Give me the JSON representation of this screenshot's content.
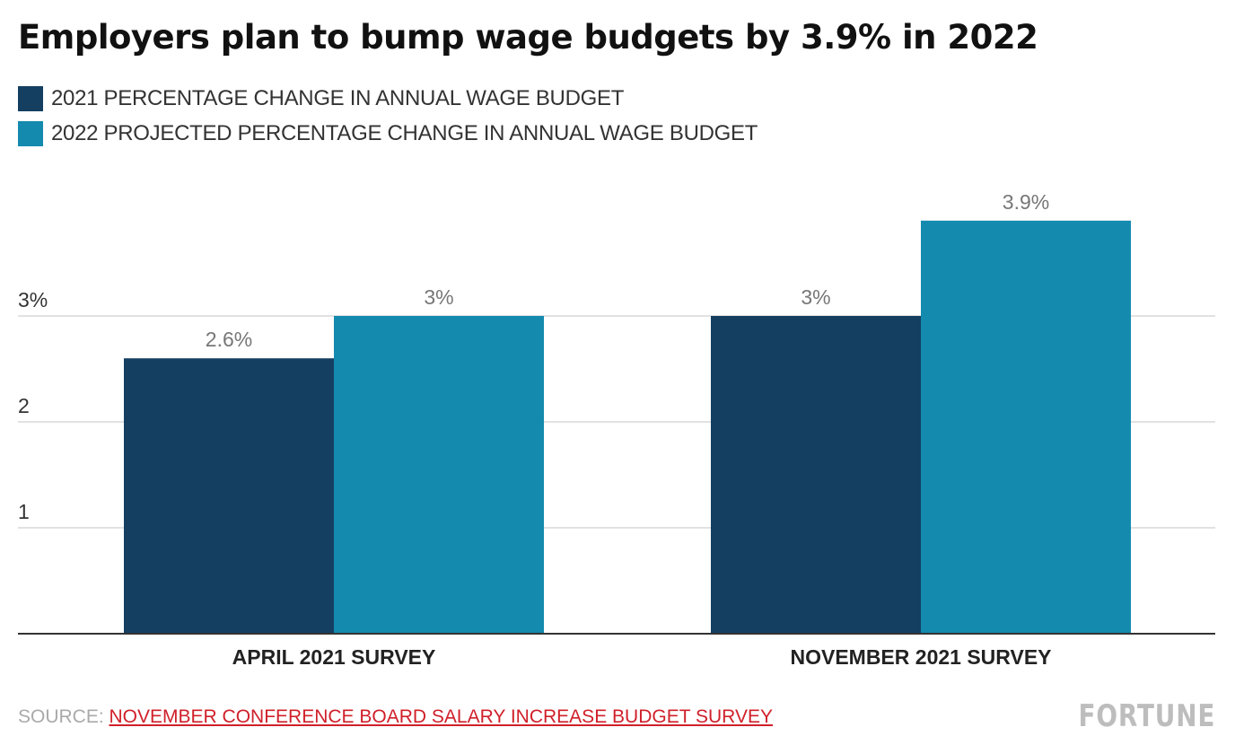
{
  "colors": {
    "series_2021": "#143f61",
    "series_2022": "#148aaf",
    "grid": "#d9d9d9",
    "axis": "#333333",
    "source_link": "#d0202a"
  },
  "chart_data": {
    "type": "bar",
    "title": "Employers plan to bump wage budgets by 3.9% in 2022",
    "categories": [
      "APRIL 2021 SURVEY",
      "NOVEMBER 2021 SURVEY"
    ],
    "series": [
      {
        "name": "2021 PERCENTAGE CHANGE IN ANNUAL WAGE BUDGET",
        "values": [
          2.6,
          3.0
        ],
        "labels": [
          "2.6%",
          "3%"
        ]
      },
      {
        "name": "2022 PROJECTED PERCENTAGE CHANGE IN ANNUAL WAGE BUDGET",
        "values": [
          3.0,
          3.9
        ],
        "labels": [
          "3%",
          "3.9%"
        ]
      }
    ],
    "yticks": [
      {
        "value": 1,
        "label": "1"
      },
      {
        "value": 2,
        "label": "2"
      },
      {
        "value": 3,
        "label": "3%"
      }
    ],
    "ylim": [
      0,
      4.5
    ],
    "grid": true,
    "legend_position": "top-left",
    "xlabel": "",
    "ylabel": ""
  },
  "footer": {
    "source_prefix": "SOURCE: ",
    "source_link": "NOVEMBER CONFERENCE BOARD SALARY INCREASE BUDGET SURVEY",
    "brand": "FORTUNE"
  }
}
